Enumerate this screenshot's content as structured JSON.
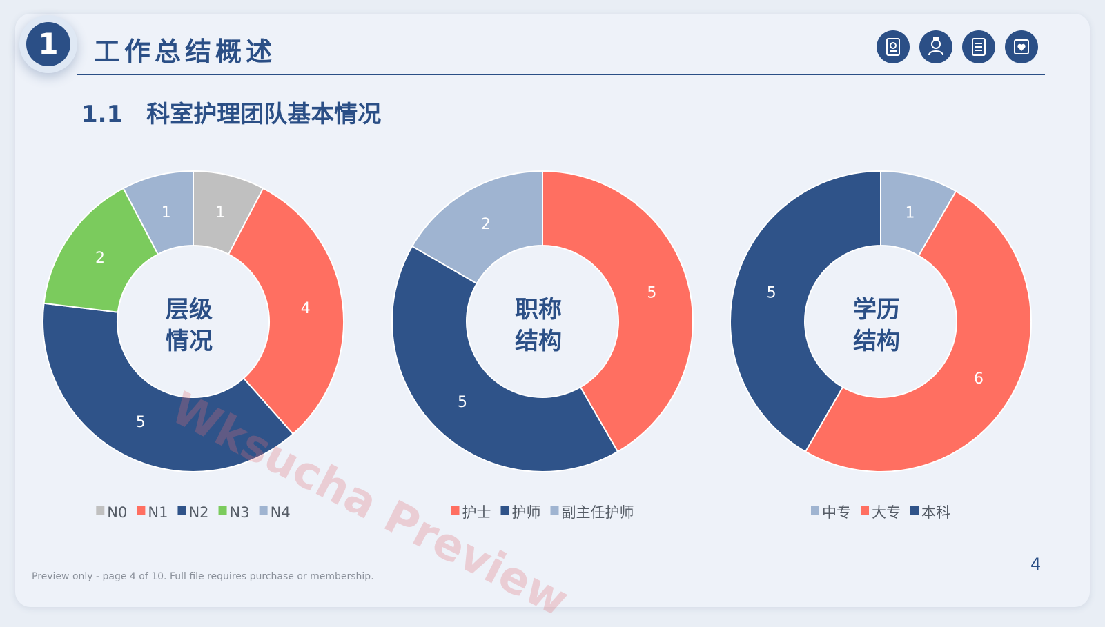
{
  "header": {
    "badge_number": "1",
    "title": "工作总结概述",
    "subtitle_number": "1.1",
    "subtitle_text": "科室护理团队基本情况",
    "icons": [
      "medical-report-icon",
      "nurse-icon",
      "checklist-icon",
      "clipboard-heart-icon"
    ]
  },
  "watermark": "Wksucha Preview",
  "footer": {
    "note": "Preview only - page 4 of 10. Full file requires purchase or membership.",
    "page_number": "4"
  },
  "colors": {
    "primary": "#2b4f86",
    "N0": "#c0c0c0",
    "N1": "#ff6f61",
    "N2": "#2f5389",
    "N3": "#7bcb5d",
    "N4": "#9fb4d1"
  },
  "chart_data": [
    {
      "type": "donut",
      "center_label": [
        "层级",
        "情况"
      ],
      "categories": [
        "N0",
        "N1",
        "N2",
        "N3",
        "N4"
      ],
      "values": [
        1,
        4,
        5,
        2,
        1
      ],
      "colors": [
        "#c0c0c0",
        "#ff6f61",
        "#2f5389",
        "#7bcb5d",
        "#9fb4d1"
      ],
      "legend": "bottom"
    },
    {
      "type": "donut",
      "center_label": [
        "职称",
        "结构"
      ],
      "categories": [
        "护士",
        "护师",
        "副主任护师"
      ],
      "values": [
        5,
        5,
        2
      ],
      "colors": [
        "#ff6f61",
        "#2f5389",
        "#9fb4d1"
      ],
      "legend": "bottom"
    },
    {
      "type": "donut",
      "center_label": [
        "学历",
        "结构"
      ],
      "categories": [
        "中专",
        "大专",
        "本科"
      ],
      "values": [
        1,
        6,
        5
      ],
      "colors": [
        "#9fb4d1",
        "#ff6f61",
        "#2f5389"
      ],
      "legend": "bottom"
    }
  ]
}
